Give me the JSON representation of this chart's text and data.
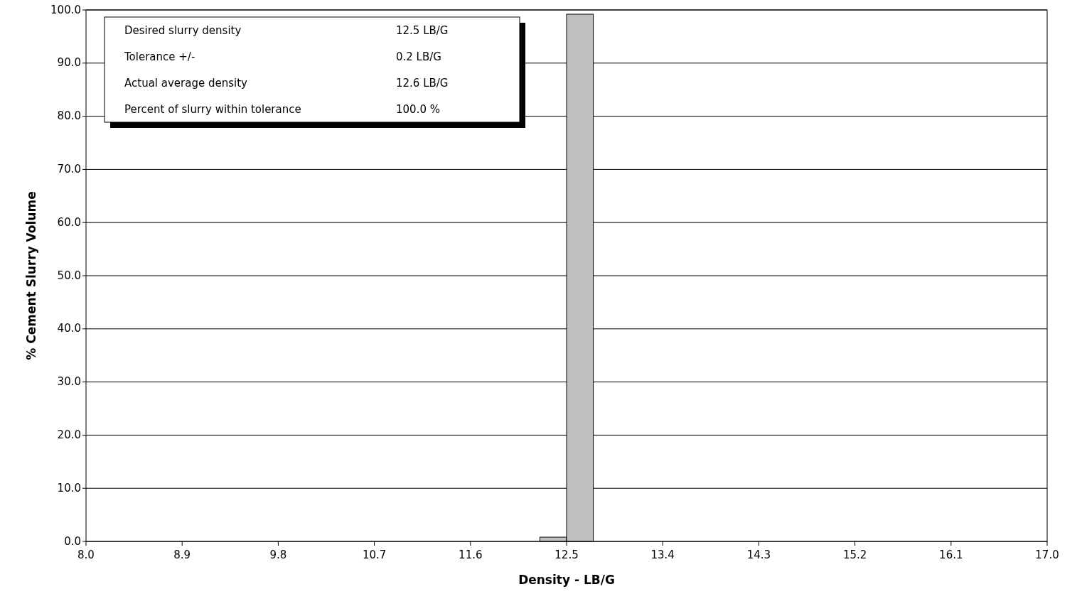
{
  "chart_data": {
    "type": "histogram",
    "xlabel": "Density - LB/G",
    "ylabel": "% Cement Slurry Volume",
    "bins": [
      12.25,
      12.5,
      12.75
    ],
    "values": [
      0.8,
      99.2
    ],
    "color": "#c0c0c0",
    "xlim": [
      8,
      17
    ],
    "xticks": [
      {
        "value": 8,
        "label": "8.0"
      },
      8.9,
      9.8,
      10.7,
      11.6,
      12.5,
      13.4,
      14.3,
      15.2,
      16.1,
      {
        "value": 17,
        "label": "17.0"
      }
    ],
    "ylim": [
      0,
      100
    ],
    "yticks": [
      {
        "value": 0,
        "label": "0.0"
      },
      {
        "value": 10,
        "label": "10.0"
      },
      {
        "value": 20,
        "label": "20.0"
      },
      {
        "value": 30,
        "label": "30.0"
      },
      {
        "value": 40,
        "label": "40.0"
      },
      {
        "value": 50,
        "label": "50.0"
      },
      {
        "value": 60,
        "label": "60.0"
      },
      {
        "value": 70,
        "label": "70.0"
      },
      {
        "value": 80,
        "label": "80.0"
      },
      {
        "value": 90,
        "label": "90.0"
      },
      {
        "value": 100,
        "label": "100.0"
      }
    ],
    "grid": "y",
    "annotations": [
      "Desired slurry density",
      "12.5 LB/G",
      "Tolerance +/-",
      "0.2 LB/G",
      "Actual average density",
      "12.6 LB/G",
      "Percent of slurry within tolerance",
      "100.0 %"
    ]
  }
}
